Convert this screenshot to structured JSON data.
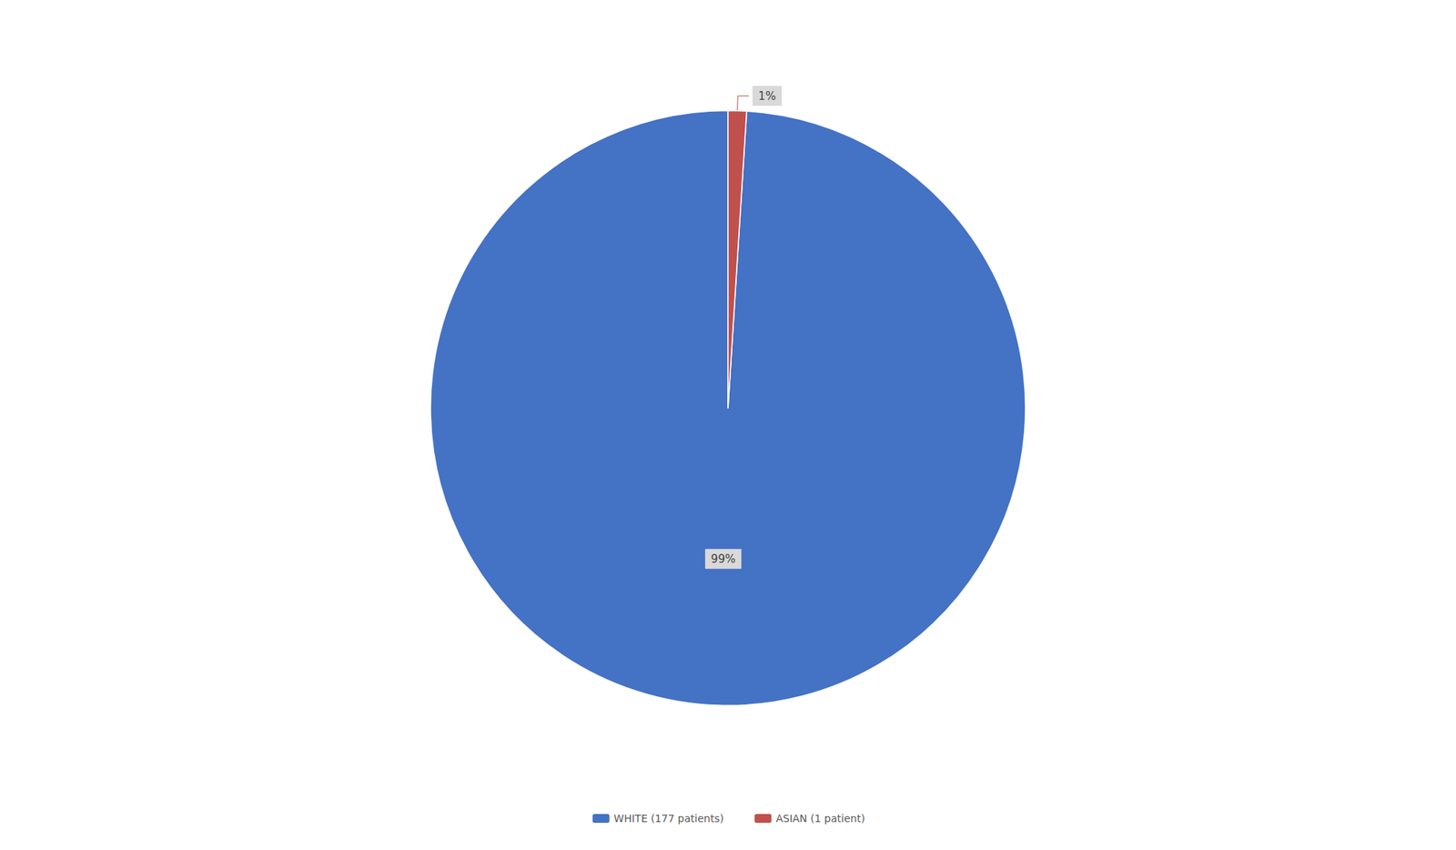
{
  "chart_data": {
    "type": "pie",
    "categories": [
      "WHITE (177 patients)",
      "ASIAN (1 patient)"
    ],
    "values": [
      99,
      1
    ],
    "value_labels": [
      "99%",
      "1%"
    ],
    "colors": [
      "#4472C4",
      "#C0504D"
    ],
    "legend": "bottom",
    "data_labels": true
  }
}
